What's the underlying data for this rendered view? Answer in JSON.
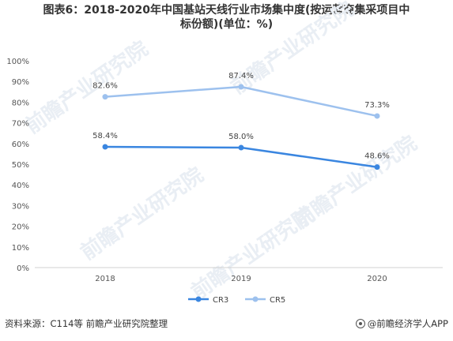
{
  "chart_data": {
    "type": "line",
    "title": "图表6：2018-2020年中国基站天线行业市场集中度(按运营商集采项目中标份额)(单位：%)",
    "title_lines": [
      "图表6：2018-2020年中国基站天线行业市场集中度(按运营商集采项目中",
      "标份额)(单位：%)"
    ],
    "categories": [
      "2018",
      "2019",
      "2020"
    ],
    "series": [
      {
        "name": "CR3",
        "values": [
          58.4,
          58.0,
          48.6
        ],
        "labels": [
          "58.4%",
          "58.0%",
          "48.6%"
        ],
        "color": "#3a86e0"
      },
      {
        "name": "CR5",
        "values": [
          82.6,
          87.4,
          73.3
        ],
        "labels": [
          "82.6%",
          "87.4%",
          "73.3%"
        ],
        "color": "#9dc1ee"
      }
    ],
    "ylim": [
      0,
      100
    ],
    "yticks": [
      "0%",
      "10%",
      "20%",
      "30%",
      "40%",
      "50%",
      "60%",
      "70%",
      "80%",
      "90%",
      "100%"
    ],
    "grid": false,
    "legend_position": "bottom"
  },
  "footer": {
    "source": "资料来源：C114等 前瞻产业研究院整理",
    "brand": "@前瞻经济学人APP"
  },
  "watermark_text": "前瞻产业研究院"
}
